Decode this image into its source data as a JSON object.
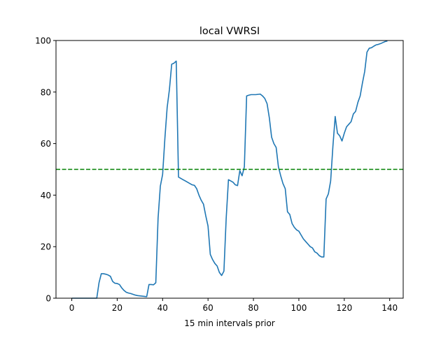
{
  "chart_data": {
    "type": "line",
    "title": "local VWRSI",
    "xlabel": "15 min intervals prior",
    "ylabel": "",
    "xlim": [
      -6.95,
      145.95
    ],
    "ylim": [
      0,
      100
    ],
    "xticks": [
      0,
      20,
      40,
      60,
      80,
      100,
      120,
      140
    ],
    "yticks": [
      0,
      20,
      40,
      60,
      80,
      100
    ],
    "grid": false,
    "series": [
      {
        "name": "local VWRSI",
        "color": "#1f77b4",
        "y": [
          0,
          0,
          0,
          0,
          0,
          0,
          0,
          0,
          0,
          0,
          0,
          0,
          6,
          9.5,
          9.5,
          9.3,
          9,
          8.5,
          6.5,
          5.8,
          5.7,
          5.3,
          4,
          3,
          2.3,
          2,
          1.8,
          1.5,
          1.2,
          1,
          0.9,
          0.8,
          0.7,
          0.6,
          5.3,
          5.3,
          5.2,
          6,
          31,
          43.5,
          48,
          62,
          74,
          81,
          90.8,
          91.2,
          92,
          47,
          46.5,
          46,
          45.5,
          45,
          44.5,
          44,
          43.8,
          42.5,
          40,
          38,
          36.5,
          32,
          28,
          17,
          15,
          13.5,
          12.5,
          10,
          8.8,
          10.5,
          31,
          46,
          45.5,
          45,
          44,
          43.7,
          49.5,
          47.5,
          51,
          78.5,
          78.8,
          79,
          79,
          79,
          79.1,
          79.2,
          78.5,
          77.5,
          75.5,
          70,
          62.5,
          60,
          58.5,
          51,
          47.5,
          44.5,
          42.5,
          33.5,
          32.5,
          29,
          27.5,
          26.5,
          26,
          24.5,
          23,
          22,
          21,
          20,
          19.5,
          18,
          17.5,
          16.5,
          16,
          16,
          38.5,
          40.5,
          45.5,
          59,
          70.5,
          64,
          63,
          61,
          64,
          66.5,
          67.5,
          68.5,
          71.5,
          72.5,
          76,
          78.5,
          83.5,
          88,
          95.5,
          97,
          97.2,
          97.8,
          98.3,
          98.5,
          98.8,
          99.2,
          99.6,
          99.8
        ]
      }
    ],
    "threshold": {
      "y": 50,
      "color": "#008000",
      "style": "dashed"
    }
  }
}
